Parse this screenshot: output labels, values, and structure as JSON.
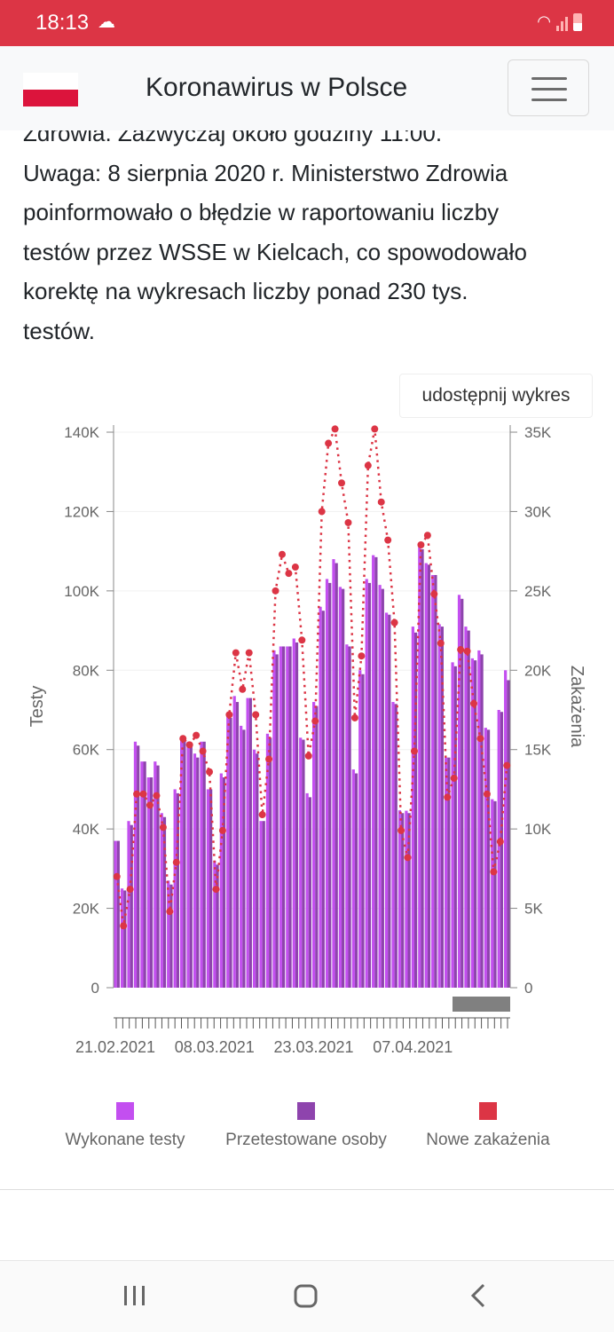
{
  "status_bar": {
    "time": "18:13"
  },
  "header": {
    "title": "Koronawirus w Polsce"
  },
  "content": {
    "lines": [
      "Zdrowia. Zazwyczaj około godziny 11:00.",
      "Uwaga: 8 sierpnia 2020 r. Ministerstwo Zdrowia",
      "poinformowało o błędzie w raportowaniu liczby",
      "testów przez WSSE w Kielcach, co spowodowało",
      "korektę na wykresach liczby ponad 230 tys.",
      "testów."
    ],
    "share_button": "udostępnij wykres"
  },
  "colors": {
    "accent": "#dc3545",
    "tests": "#c34ff0",
    "tested": "#8e44ad",
    "cases": "#dc3545"
  },
  "chart_data": {
    "type": "bar",
    "start_date": "21.02.2021",
    "end_date": "21.04.2021",
    "x_tick_labels": [
      "21.02.2021",
      "08.03.2021",
      "23.03.2021",
      "07.04.2021"
    ],
    "x_tick_indices": [
      0,
      15,
      30,
      45
    ],
    "ylabel_left": "Testy",
    "ylabel_right": "Zakażenia",
    "ylim_left": [
      0,
      140000
    ],
    "ylim_right": [
      0,
      35000
    ],
    "yticks_left": [
      "0",
      "20K",
      "40K",
      "60K",
      "80K",
      "100K",
      "120K",
      "140K"
    ],
    "yticks_right": [
      "0",
      "5K",
      "10K",
      "15K",
      "20K",
      "25K",
      "30K",
      "35K"
    ],
    "legend_position": "bottom",
    "series": [
      {
        "name": "Wykonane testy",
        "type": "bar",
        "axis": "left",
        "values": [
          37000,
          25000,
          42000,
          62000,
          57000,
          53000,
          57000,
          44000,
          27000,
          50000,
          63000,
          62000,
          59000,
          62000,
          50000,
          32000,
          54000,
          69000,
          73500,
          66000,
          73000,
          60000,
          42000,
          64000,
          85000,
          86000,
          86000,
          88000,
          63000,
          49000,
          72000,
          96000,
          103000,
          108000,
          101000,
          86500,
          55000,
          80000,
          103000,
          109000,
          101500,
          94500,
          72000,
          44700,
          44600,
          91000,
          111000,
          107000,
          104000,
          91600,
          58000,
          82000,
          99000,
          91000,
          83000,
          85000,
          65500,
          47500,
          70000,
          80000
        ]
      },
      {
        "name": "Przetestowane osoby",
        "type": "bar",
        "axis": "left",
        "values": [
          37000,
          24500,
          41000,
          61000,
          57000,
          53000,
          56000,
          43000,
          26000,
          49000,
          63000,
          61000,
          58000,
          62000,
          50000,
          31000,
          53000,
          68000,
          72000,
          65000,
          73000,
          59000,
          42000,
          63000,
          84000,
          86000,
          86000,
          87000,
          62500,
          48000,
          71000,
          95000,
          102000,
          107000,
          100500,
          86000,
          54000,
          79000,
          102000,
          108500,
          100500,
          94000,
          71500,
          44000,
          44000,
          89500,
          110500,
          106600,
          104000,
          91000,
          58000,
          81000,
          98000,
          90000,
          82500,
          84000,
          65000,
          47000,
          69500,
          77500
        ]
      },
      {
        "name": "Nowe zakażenia",
        "type": "line",
        "axis": "right",
        "values": [
          7000,
          3900,
          6200,
          12200,
          12200,
          11500,
          12100,
          10100,
          4800,
          7900,
          15700,
          15300,
          15900,
          14900,
          13600,
          6200,
          9900,
          17200,
          21100,
          18800,
          21100,
          17200,
          10900,
          14400,
          25000,
          27300,
          26100,
          26500,
          21900,
          14600,
          16800,
          30000,
          34300,
          35200,
          31800,
          29300,
          17000,
          20900,
          32900,
          35200,
          30600,
          28200,
          23000,
          9900,
          8200,
          14900,
          27900,
          28500,
          24800,
          21700,
          12000,
          13200,
          21300,
          21200,
          17900,
          15700,
          12200,
          7300,
          9200,
          14000
        ]
      }
    ]
  },
  "legend": [
    {
      "label": "Wykonane testy",
      "color": "#c34ff0"
    },
    {
      "label": "Przetestowane osoby",
      "color": "#8e44ad"
    },
    {
      "label": "Nowe zakażenia",
      "color": "#dc3545"
    }
  ]
}
